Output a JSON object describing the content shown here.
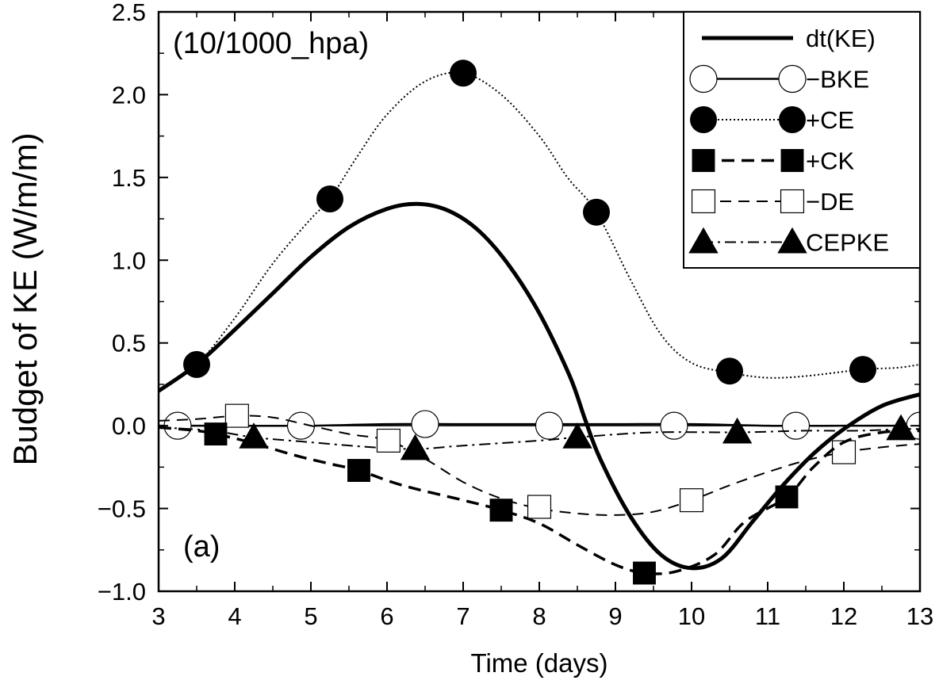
{
  "chart_data": {
    "type": "line",
    "title": "",
    "xlabel": "Time (days)",
    "ylabel": "Budget of KE (W/m/m)",
    "xlim": [
      3,
      13
    ],
    "ylim": [
      -1.0,
      2.5
    ],
    "x_ticks": [
      3,
      4,
      5,
      6,
      7,
      8,
      9,
      10,
      11,
      12,
      13
    ],
    "x_tick_labels": [
      "3",
      "4",
      "5",
      "6",
      "7",
      "8",
      "9",
      "10",
      "11",
      "12",
      "13"
    ],
    "y_ticks": [
      -1.0,
      -0.5,
      0.0,
      0.5,
      1.0,
      1.5,
      2.0,
      2.5
    ],
    "y_tick_labels": [
      "−1.0",
      "−0.5",
      "0.0",
      "0.5",
      "1.0",
      "1.5",
      "2.0",
      "2.5"
    ],
    "grid": false,
    "legend_position": "top-right",
    "annotations": [
      {
        "id": "level",
        "text": "(10/1000_hpa)",
        "position": "top-left"
      },
      {
        "id": "panel",
        "text": "(a)",
        "position": "bottom-left"
      }
    ],
    "series": [
      {
        "name": "dt(KE)",
        "line": "solid-thick",
        "marker": "none",
        "curve": [
          [
            3.0,
            0.21
          ],
          [
            3.5,
            0.37
          ],
          [
            4.0,
            0.58
          ],
          [
            4.5,
            0.8
          ],
          [
            5.0,
            1.02
          ],
          [
            5.5,
            1.2
          ],
          [
            6.0,
            1.31
          ],
          [
            6.4,
            1.34
          ],
          [
            6.8,
            1.3
          ],
          [
            7.2,
            1.18
          ],
          [
            7.6,
            0.97
          ],
          [
            8.0,
            0.68
          ],
          [
            8.4,
            0.3
          ],
          [
            8.6,
            0.04
          ],
          [
            8.8,
            -0.2
          ],
          [
            9.2,
            -0.55
          ],
          [
            9.6,
            -0.78
          ],
          [
            10.0,
            -0.86
          ],
          [
            10.4,
            -0.8
          ],
          [
            10.8,
            -0.58
          ],
          [
            11.2,
            -0.36
          ],
          [
            11.6,
            -0.17
          ],
          [
            12.0,
            -0.02
          ],
          [
            12.5,
            0.12
          ],
          [
            13.0,
            0.19
          ]
        ],
        "markers": []
      },
      {
        "name": "−BKE",
        "line": "solid-thin",
        "marker": "open-circle",
        "curve": [
          [
            3.0,
            0.0
          ],
          [
            4.0,
            0.0
          ],
          [
            5.0,
            0.0
          ],
          [
            6.0,
            0.01
          ],
          [
            7.0,
            0.01
          ],
          [
            8.0,
            0.01
          ],
          [
            9.0,
            0.01
          ],
          [
            10.0,
            0.01
          ],
          [
            11.0,
            0.0
          ],
          [
            12.0,
            0.0
          ],
          [
            13.0,
            0.0
          ]
        ],
        "markers": [
          [
            3.25,
            0.0
          ],
          [
            4.87,
            0.0
          ],
          [
            6.5,
            0.01
          ],
          [
            8.13,
            0.0
          ],
          [
            9.77,
            0.0
          ],
          [
            11.37,
            0.0
          ],
          [
            13.0,
            0.0
          ]
        ]
      },
      {
        "name": "+CE",
        "line": "dotted",
        "marker": "filled-circle",
        "curve": [
          [
            3.0,
            0.22
          ],
          [
            3.5,
            0.37
          ],
          [
            4.0,
            0.65
          ],
          [
            4.5,
            0.98
          ],
          [
            5.0,
            1.25
          ],
          [
            5.25,
            1.37
          ],
          [
            5.6,
            1.62
          ],
          [
            6.0,
            1.88
          ],
          [
            6.5,
            2.08
          ],
          [
            7.0,
            2.13
          ],
          [
            7.5,
            2.0
          ],
          [
            8.0,
            1.75
          ],
          [
            8.37,
            1.5
          ],
          [
            8.75,
            1.29
          ],
          [
            9.2,
            0.88
          ],
          [
            9.6,
            0.55
          ],
          [
            10.0,
            0.38
          ],
          [
            10.5,
            0.32
          ],
          [
            11.0,
            0.29
          ],
          [
            11.5,
            0.3
          ],
          [
            12.25,
            0.34
          ],
          [
            12.7,
            0.35
          ],
          [
            13.0,
            0.37
          ]
        ],
        "markers": [
          [
            3.5,
            0.37
          ],
          [
            5.25,
            1.37
          ],
          [
            7.0,
            2.13
          ],
          [
            8.75,
            1.29
          ],
          [
            10.5,
            0.33
          ],
          [
            12.25,
            0.34
          ]
        ]
      },
      {
        "name": "+CK",
        "line": "dashed-thick",
        "marker": "filled-square",
        "curve": [
          [
            3.0,
            -0.01
          ],
          [
            3.5,
            -0.03
          ],
          [
            3.75,
            -0.05
          ],
          [
            4.2,
            -0.1
          ],
          [
            4.8,
            -0.18
          ],
          [
            5.25,
            -0.23
          ],
          [
            5.63,
            -0.27
          ],
          [
            6.2,
            -0.36
          ],
          [
            7.0,
            -0.45
          ],
          [
            7.5,
            -0.51
          ],
          [
            8.0,
            -0.59
          ],
          [
            8.5,
            -0.72
          ],
          [
            9.0,
            -0.84
          ],
          [
            9.38,
            -0.89
          ],
          [
            9.8,
            -0.88
          ],
          [
            10.3,
            -0.78
          ],
          [
            10.7,
            -0.58
          ],
          [
            11.25,
            -0.43
          ],
          [
            11.6,
            -0.25
          ],
          [
            12.0,
            -0.1
          ],
          [
            12.5,
            -0.04
          ],
          [
            13.0,
            -0.03
          ]
        ],
        "markers": [
          [
            3.75,
            -0.05
          ],
          [
            5.63,
            -0.27
          ],
          [
            7.5,
            -0.51
          ],
          [
            9.38,
            -0.89
          ],
          [
            11.25,
            -0.43
          ]
        ]
      },
      {
        "name": "−DE",
        "line": "dashed-thin",
        "marker": "open-square",
        "curve": [
          [
            3.0,
            0.03
          ],
          [
            3.5,
            0.04
          ],
          [
            4.03,
            0.06
          ],
          [
            4.5,
            0.05
          ],
          [
            5.0,
            0.0
          ],
          [
            5.5,
            -0.05
          ],
          [
            6.02,
            -0.09
          ],
          [
            6.5,
            -0.2
          ],
          [
            7.0,
            -0.34
          ],
          [
            7.5,
            -0.44
          ],
          [
            8.0,
            -0.5
          ],
          [
            8.5,
            -0.53
          ],
          [
            9.0,
            -0.54
          ],
          [
            9.5,
            -0.52
          ],
          [
            10.0,
            -0.45
          ],
          [
            10.5,
            -0.36
          ],
          [
            11.0,
            -0.28
          ],
          [
            11.5,
            -0.21
          ],
          [
            12.0,
            -0.16
          ],
          [
            12.5,
            -0.13
          ],
          [
            13.0,
            -0.11
          ]
        ],
        "markers": [
          [
            4.03,
            0.06
          ],
          [
            6.02,
            -0.09
          ],
          [
            8.0,
            -0.49
          ],
          [
            10.0,
            -0.45
          ],
          [
            12.0,
            -0.16
          ]
        ]
      },
      {
        "name": "CEPKE",
        "line": "dash-dot",
        "marker": "filled-triangle",
        "curve": [
          [
            3.0,
            -0.01
          ],
          [
            3.7,
            -0.03
          ],
          [
            4.25,
            -0.07
          ],
          [
            5.0,
            -0.1
          ],
          [
            5.8,
            -0.13
          ],
          [
            6.4,
            -0.14
          ],
          [
            7.0,
            -0.12
          ],
          [
            8.0,
            -0.09
          ],
          [
            8.5,
            -0.07
          ],
          [
            9.5,
            -0.04
          ],
          [
            10.6,
            -0.04
          ],
          [
            11.5,
            -0.03
          ],
          [
            12.2,
            -0.03
          ],
          [
            12.75,
            -0.02
          ],
          [
            13.0,
            -0.02
          ]
        ],
        "markers": [
          [
            4.25,
            -0.07
          ],
          [
            6.37,
            -0.14
          ],
          [
            8.5,
            -0.07
          ],
          [
            10.6,
            -0.04
          ],
          [
            12.75,
            -0.02
          ]
        ]
      }
    ]
  }
}
